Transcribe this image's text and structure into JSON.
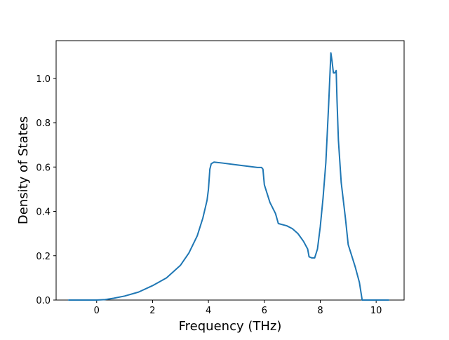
{
  "chart_data": {
    "type": "line",
    "title": "",
    "xlabel": "Frequency (THz)",
    "ylabel": "Density of States",
    "xlim": [
      -1.45,
      11.0
    ],
    "ylim": [
      0.0,
      1.17
    ],
    "x_ticks": [
      0,
      2,
      4,
      6,
      8,
      10
    ],
    "x_tick_labels": [
      "0",
      "2",
      "4",
      "6",
      "8",
      "10"
    ],
    "y_ticks": [
      0.0,
      0.2,
      0.4,
      0.6,
      0.8,
      1.0
    ],
    "y_tick_labels": [
      "0.0",
      "0.2",
      "0.4",
      "0.6",
      "0.8",
      "1.0"
    ],
    "grid": false,
    "legend": "none",
    "series": [
      {
        "color": "#1f77b4",
        "x": [
          -1.0,
          -0.5,
          0.0,
          0.3,
          0.6,
          1.0,
          1.5,
          2.0,
          2.5,
          3.0,
          3.3,
          3.6,
          3.8,
          3.95,
          4.0,
          4.05,
          4.1,
          4.2,
          4.5,
          5.0,
          5.5,
          5.75,
          5.9,
          5.95,
          6.0,
          6.2,
          6.4,
          6.5,
          6.8,
          7.0,
          7.2,
          7.4,
          7.55,
          7.6,
          7.7,
          7.8,
          7.9,
          8.0,
          8.1,
          8.2,
          8.3,
          8.38,
          8.42,
          8.47,
          8.52,
          8.57,
          8.6,
          8.65,
          8.75,
          8.9,
          9.0,
          9.1,
          9.25,
          9.4,
          9.5,
          9.55,
          9.6,
          9.7,
          10.0,
          10.45
        ],
        "y": [
          0.0,
          0.0,
          0.0,
          0.002,
          0.008,
          0.018,
          0.036,
          0.065,
          0.1,
          0.157,
          0.212,
          0.29,
          0.37,
          0.45,
          0.5,
          0.59,
          0.615,
          0.622,
          0.618,
          0.61,
          0.602,
          0.598,
          0.598,
          0.59,
          0.52,
          0.44,
          0.39,
          0.345,
          0.335,
          0.322,
          0.3,
          0.265,
          0.23,
          0.195,
          0.19,
          0.19,
          0.23,
          0.33,
          0.46,
          0.62,
          0.88,
          1.115,
          1.08,
          1.025,
          1.025,
          1.035,
          0.9,
          0.72,
          0.53,
          0.37,
          0.25,
          0.21,
          0.15,
          0.08,
          0.0,
          0.0,
          0.0,
          0.0,
          0.0,
          0.0
        ]
      }
    ]
  }
}
